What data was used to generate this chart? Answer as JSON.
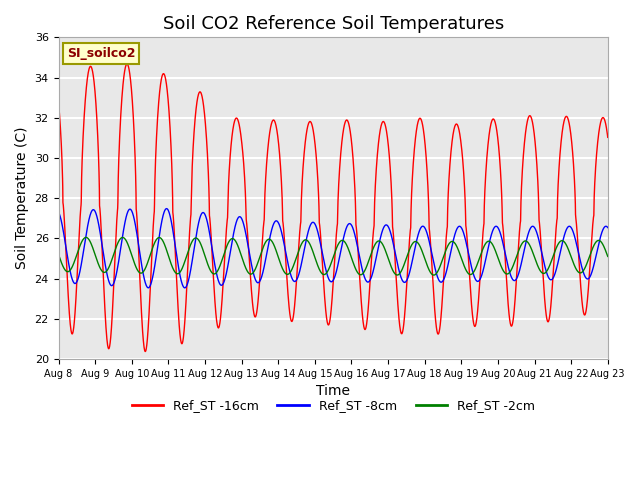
{
  "title": "Soil CO2 Reference Soil Temperatures",
  "xlabel": "Time",
  "ylabel": "Soil Temperature (C)",
  "ylim": [
    20,
    36
  ],
  "annotation_text": "SI_soilco2",
  "legend_labels": [
    "Ref_ST -16cm",
    "Ref_ST -8cm",
    "Ref_ST -2cm"
  ],
  "legend_colors": [
    "red",
    "blue",
    "green"
  ],
  "tick_labels": [
    "Aug 8",
    "Aug 9",
    "Aug 10",
    "Aug 11",
    "Aug 12",
    "Aug 13",
    "Aug 14",
    "Aug 15",
    "Aug 16",
    "Aug 17",
    "Aug 18",
    "Aug 19",
    "Aug 20",
    "Aug 21",
    "Aug 22",
    "Aug 23"
  ],
  "background_color": "#e8e8e8",
  "title_fontsize": 13,
  "axis_label_fontsize": 10,
  "yticks": [
    20,
    22,
    24,
    26,
    28,
    30,
    32,
    34,
    36
  ]
}
